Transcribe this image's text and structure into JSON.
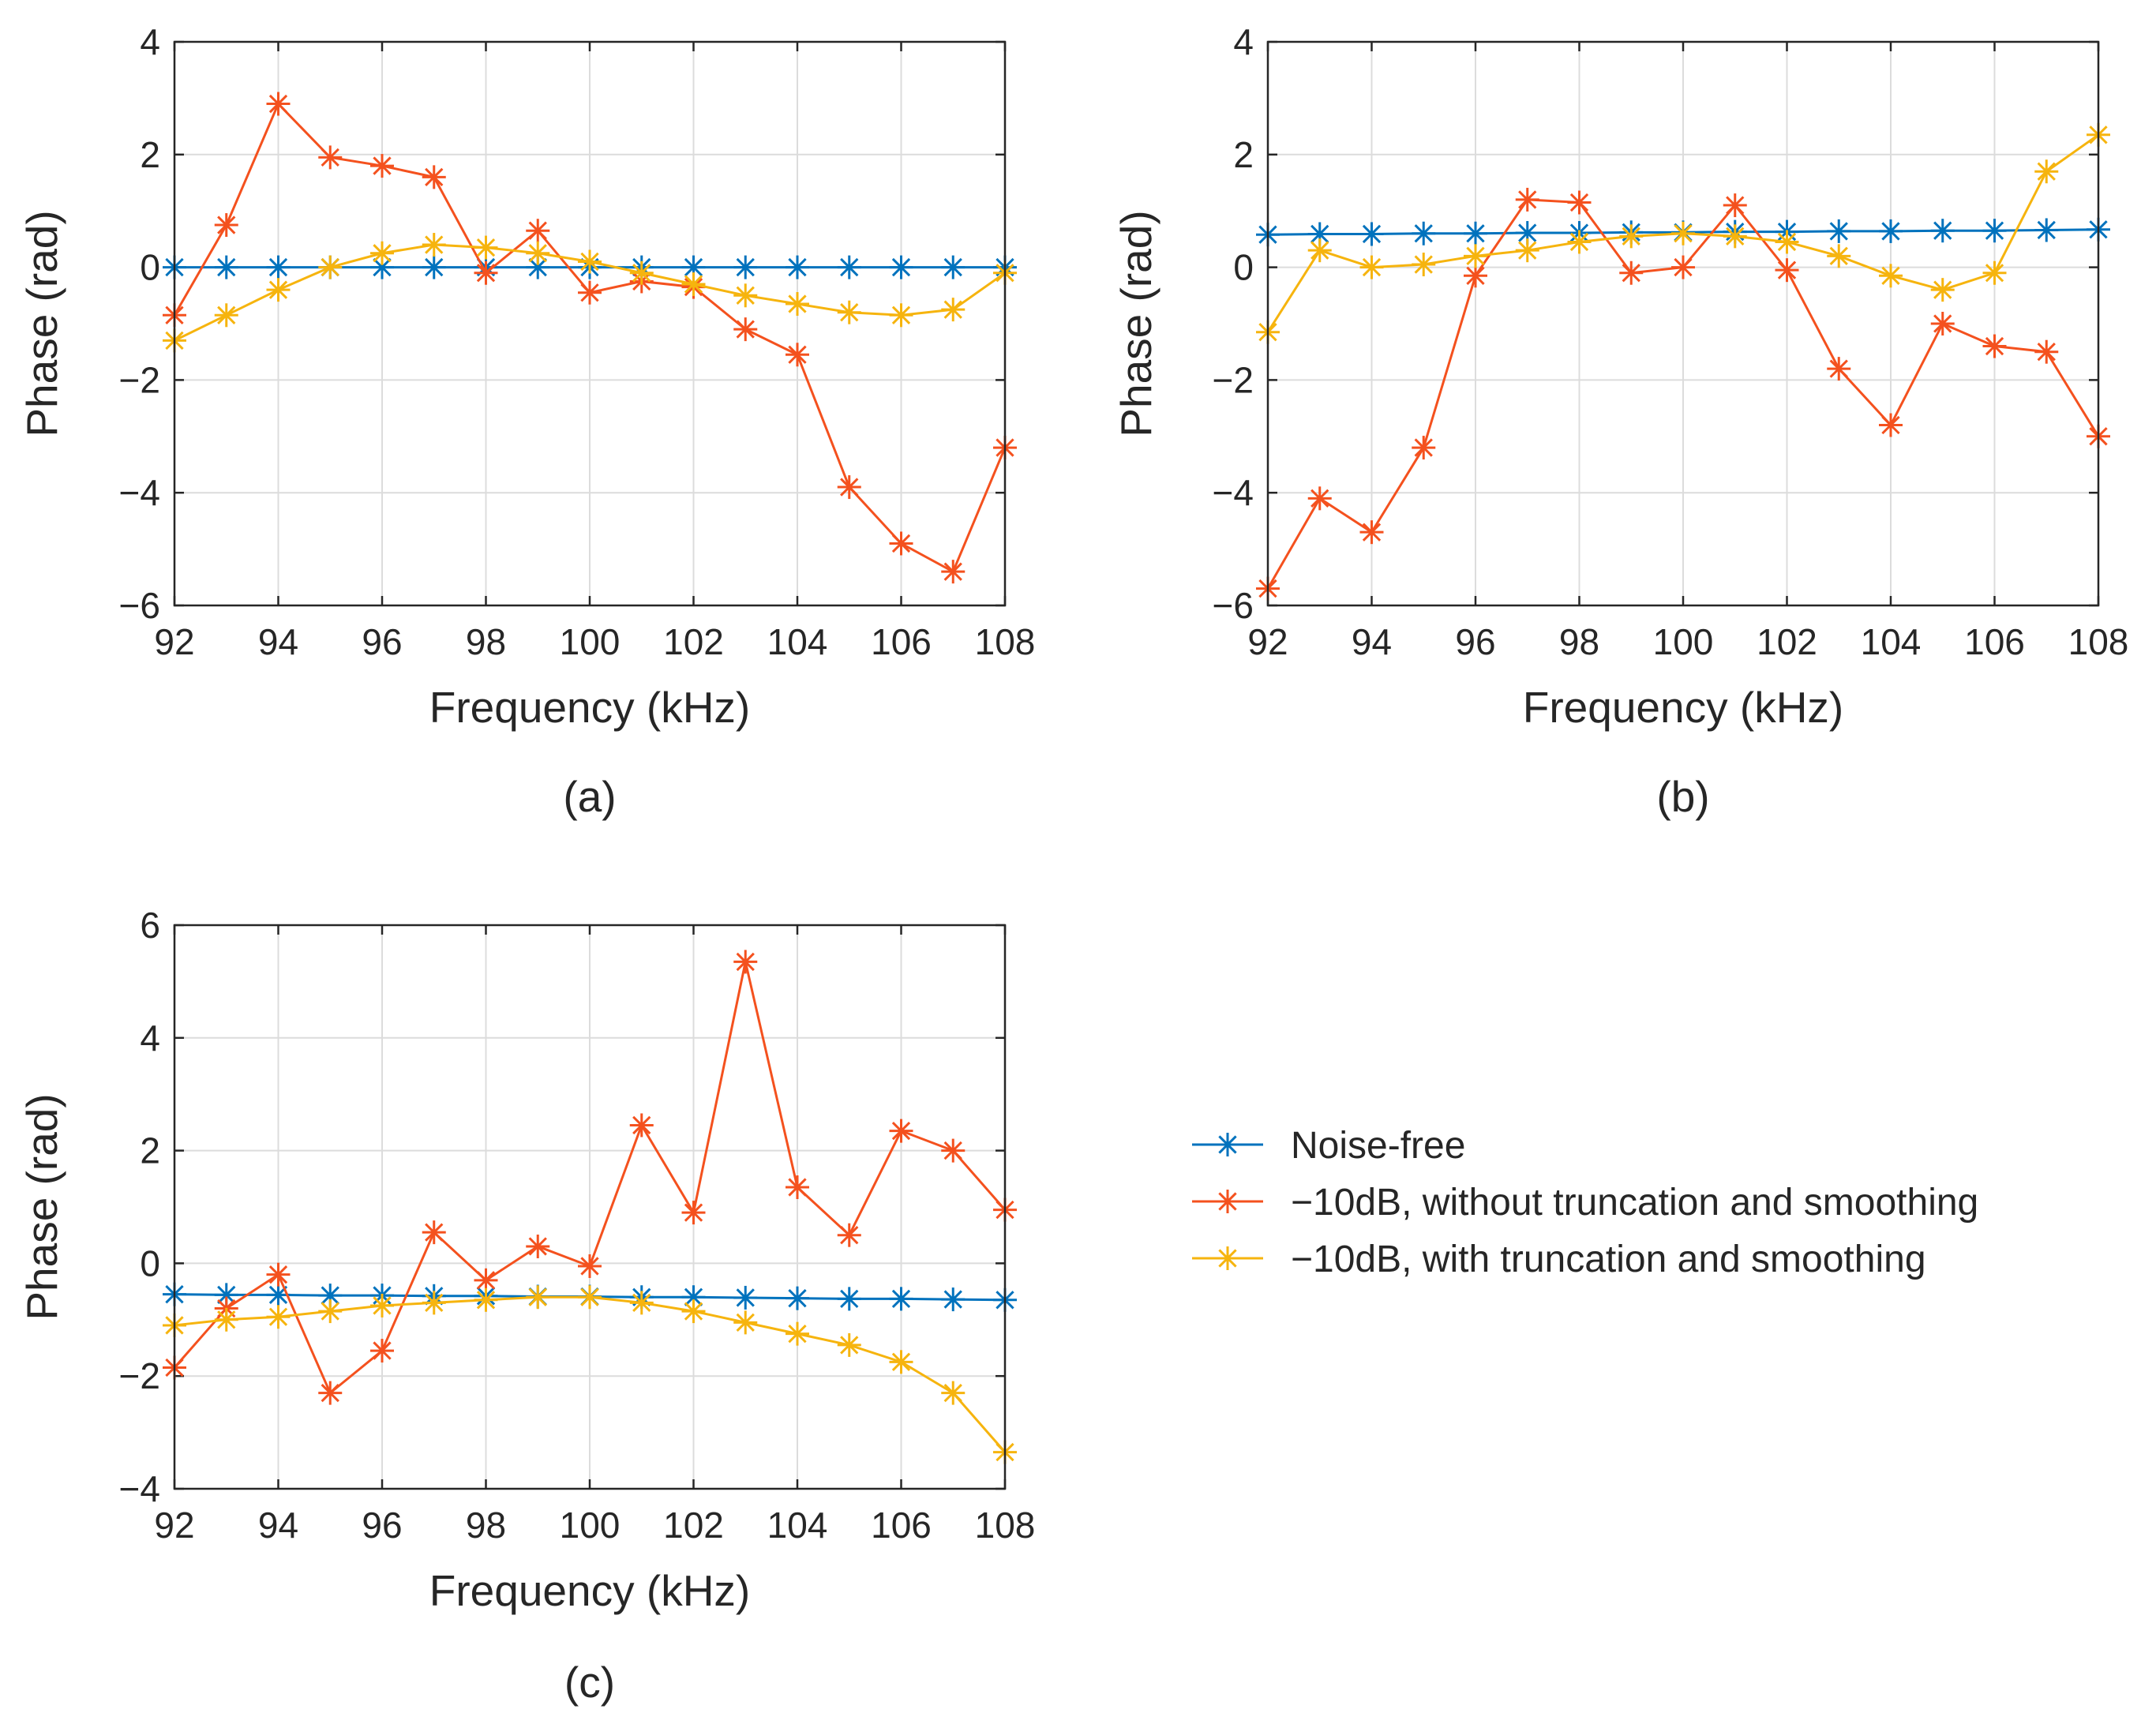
{
  "colors": {
    "noise_free": "#0072BD",
    "without": "#F4511E",
    "with": "#F6B40E",
    "axis": "#262626",
    "grid": "#dcdcdc"
  },
  "legend": {
    "items": [
      {
        "key": "noise_free",
        "label": "Noise-free"
      },
      {
        "key": "without",
        "label": "−10dB, without truncation and smoothing"
      },
      {
        "key": "with",
        "label": "−10dB, with truncation and smoothing"
      }
    ]
  },
  "chart_data": [
    {
      "type": "line",
      "caption": "(a)",
      "xlabel": "Frequency (kHz)",
      "ylabel": "Phase (rad)",
      "xlim": [
        92,
        108
      ],
      "ylim": [
        -6,
        4
      ],
      "xticks": [
        92,
        94,
        96,
        98,
        100,
        102,
        104,
        106,
        108
      ],
      "yticks": [
        -6,
        -4,
        -2,
        0,
        2,
        4
      ],
      "grid": true,
      "x": [
        92,
        93,
        94,
        95,
        96,
        97,
        98,
        99,
        100,
        101,
        102,
        103,
        104,
        105,
        106,
        107,
        108
      ],
      "series": [
        {
          "name": "Noise-free",
          "key": "noise_free",
          "values": [
            0,
            0,
            0,
            0,
            0,
            0,
            0,
            0,
            0,
            0,
            0,
            0,
            0,
            0,
            0,
            0,
            0
          ]
        },
        {
          "name": "−10dB, without truncation and smoothing",
          "key": "without",
          "values": [
            -0.85,
            0.75,
            2.9,
            1.95,
            1.8,
            1.6,
            -0.1,
            0.65,
            -0.45,
            -0.25,
            -0.35,
            -1.1,
            -1.55,
            -3.9,
            -4.9,
            -5.4,
            -3.2
          ]
        },
        {
          "name": "−10dB, with truncation and smoothing",
          "key": "with",
          "values": [
            -1.3,
            -0.85,
            -0.4,
            0.0,
            0.25,
            0.4,
            0.35,
            0.25,
            0.1,
            -0.1,
            -0.3,
            -0.5,
            -0.65,
            -0.8,
            -0.85,
            -0.75,
            -0.1
          ]
        }
      ]
    },
    {
      "type": "line",
      "caption": "(b)",
      "xlabel": "Frequency (kHz)",
      "ylabel": "Phase (rad)",
      "xlim": [
        92,
        108
      ],
      "ylim": [
        -6,
        4
      ],
      "xticks": [
        92,
        94,
        96,
        98,
        100,
        102,
        104,
        106,
        108
      ],
      "yticks": [
        -6,
        -4,
        -2,
        0,
        2,
        4
      ],
      "grid": true,
      "x": [
        92,
        93,
        94,
        95,
        96,
        97,
        98,
        99,
        100,
        101,
        102,
        103,
        104,
        105,
        106,
        107,
        108
      ],
      "series": [
        {
          "name": "Noise-free",
          "key": "noise_free",
          "values": [
            0.58,
            0.59,
            0.59,
            0.6,
            0.6,
            0.61,
            0.61,
            0.62,
            0.62,
            0.63,
            0.63,
            0.64,
            0.64,
            0.65,
            0.65,
            0.66,
            0.67
          ]
        },
        {
          "name": "−10dB, without truncation and smoothing",
          "key": "without",
          "values": [
            -5.7,
            -4.1,
            -4.7,
            -3.2,
            -0.15,
            1.2,
            1.15,
            -0.1,
            0.0,
            1.1,
            -0.05,
            -1.8,
            -2.8,
            -1.0,
            -1.4,
            -1.5,
            -3.0
          ]
        },
        {
          "name": "−10dB, with truncation and smoothing",
          "key": "with",
          "values": [
            -1.15,
            0.3,
            0.0,
            0.05,
            0.2,
            0.3,
            0.45,
            0.55,
            0.6,
            0.55,
            0.45,
            0.2,
            -0.15,
            -0.4,
            -0.1,
            1.7,
            2.35
          ]
        }
      ]
    },
    {
      "type": "line",
      "caption": "(c)",
      "xlabel": "Frequency (kHz)",
      "ylabel": "Phase (rad)",
      "xlim": [
        92,
        108
      ],
      "ylim": [
        -4,
        6
      ],
      "xticks": [
        92,
        94,
        96,
        98,
        100,
        102,
        104,
        106,
        108
      ],
      "yticks": [
        -4,
        -2,
        0,
        2,
        4,
        6
      ],
      "grid": true,
      "x": [
        92,
        93,
        94,
        95,
        96,
        97,
        98,
        99,
        100,
        101,
        102,
        103,
        104,
        105,
        106,
        107,
        108
      ],
      "series": [
        {
          "name": "Noise-free",
          "key": "noise_free",
          "values": [
            -0.55,
            -0.56,
            -0.56,
            -0.57,
            -0.57,
            -0.58,
            -0.58,
            -0.59,
            -0.59,
            -0.6,
            -0.6,
            -0.61,
            -0.62,
            -0.63,
            -0.63,
            -0.64,
            -0.65
          ]
        },
        {
          "name": "−10dB, without truncation and smoothing",
          "key": "without",
          "values": [
            -1.85,
            -0.8,
            -0.2,
            -2.3,
            -1.55,
            0.55,
            -0.3,
            0.3,
            -0.05,
            2.45,
            0.9,
            5.35,
            1.35,
            0.5,
            2.35,
            2.0,
            0.95
          ]
        },
        {
          "name": "−10dB, with truncation and smoothing",
          "key": "with",
          "values": [
            -1.1,
            -1.0,
            -0.95,
            -0.85,
            -0.75,
            -0.7,
            -0.65,
            -0.6,
            -0.6,
            -0.7,
            -0.85,
            -1.05,
            -1.25,
            -1.45,
            -1.75,
            -2.3,
            -3.35
          ]
        }
      ]
    }
  ]
}
